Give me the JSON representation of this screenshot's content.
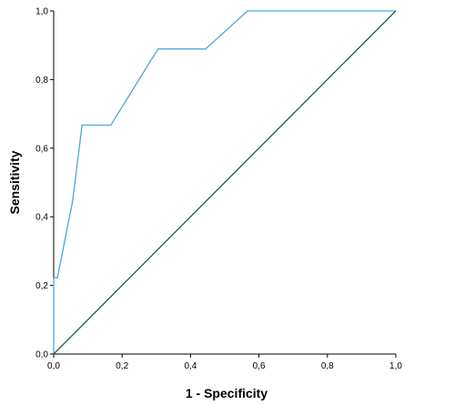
{
  "chart_data": {
    "type": "line",
    "xlabel": "1 - Specificity",
    "ylabel": "Sensitivity",
    "xlim": [
      0,
      1
    ],
    "ylim": [
      0,
      1
    ],
    "x_ticks": [
      "0,0",
      "0,2",
      "0,4",
      "0,6",
      "0,8",
      "1,0"
    ],
    "y_ticks": [
      "0,0",
      "0,2",
      "0,4",
      "0,6",
      "0,8",
      "1,0"
    ],
    "grid": false,
    "series": [
      {
        "color": "#4aa6e0",
        "x": [
          0,
          0,
          0,
          0.011,
          0.055,
          0.083,
          0.167,
          0.305,
          0.444,
          0.567,
          1.0
        ],
        "y": [
          0,
          0.222,
          0.222,
          0.222,
          0.444,
          0.667,
          0.667,
          0.889,
          0.889,
          1.0,
          1.0
        ]
      },
      {
        "color": "#1f5a5a",
        "x": [
          0,
          1
        ],
        "y": [
          0,
          1
        ]
      }
    ]
  }
}
